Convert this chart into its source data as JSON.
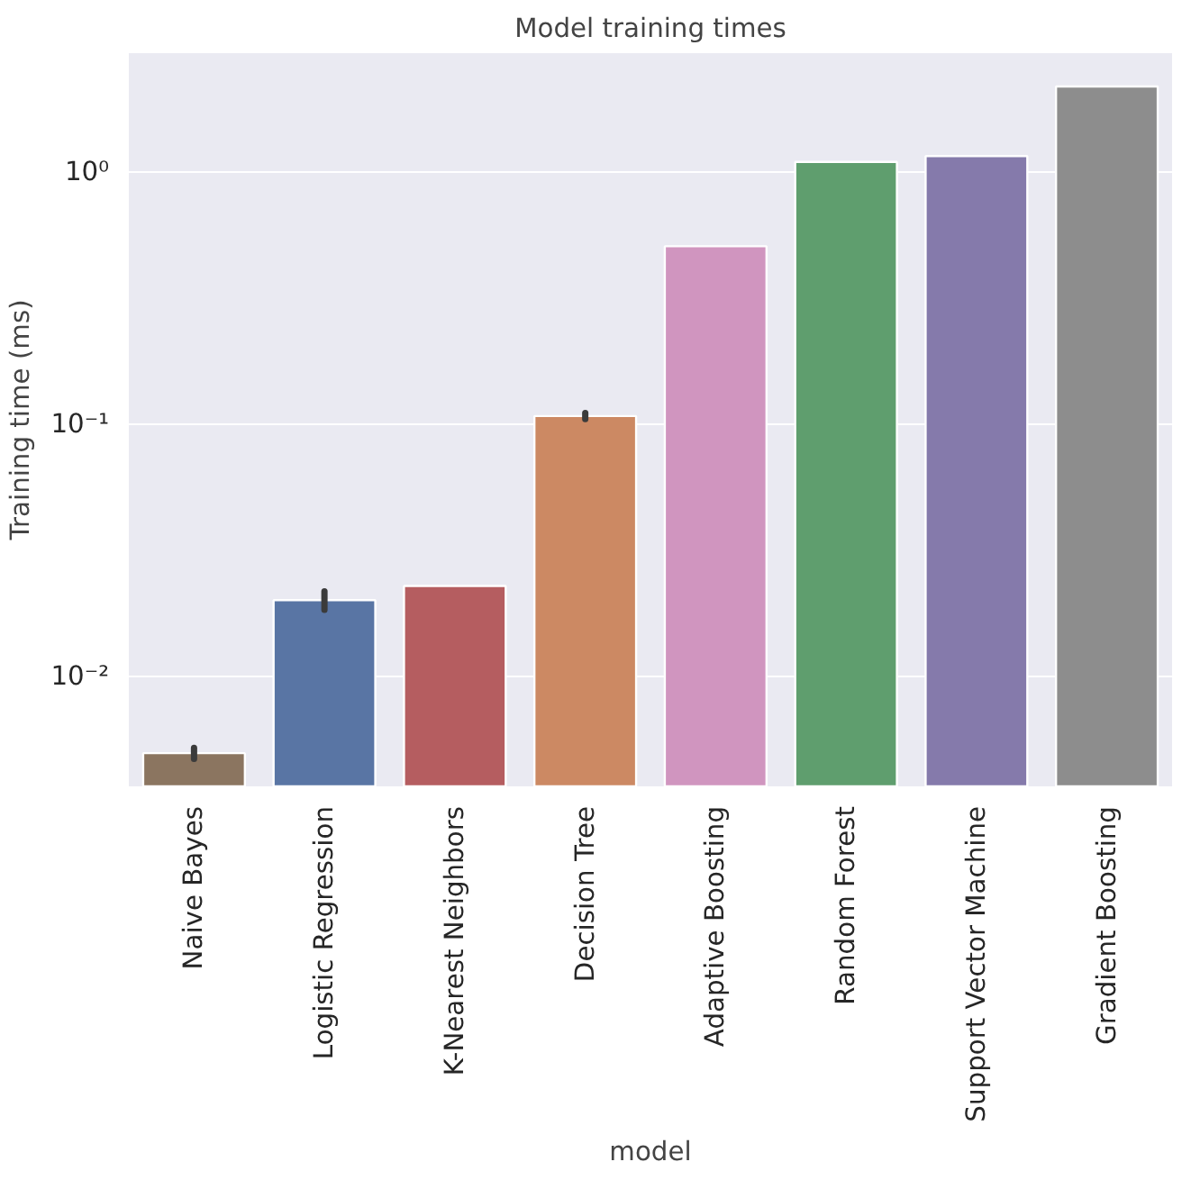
{
  "chart_data": {
    "type": "bar",
    "title": "Model training times",
    "xlabel": "model",
    "ylabel": "Training time (ms)",
    "categories": [
      "Naive Bayes",
      "Logistic Regression",
      "K-Nearest Neighbors",
      "Decision Tree",
      "Adaptive Boosting",
      "Random Forest",
      "Support Vector Machine",
      "Gradient Boosting"
    ],
    "values": [
      0.00497,
      0.0201,
      0.0229,
      0.108,
      0.509,
      1.1,
      1.16,
      2.19
    ],
    "errors": [
      0.00025,
      0.0017,
      null,
      0.003,
      null,
      null,
      null,
      null
    ],
    "colors": [
      "#8b7560",
      "#5975a4",
      "#b55d60",
      "#cc8963",
      "#d095bf",
      "#5f9e6e",
      "#857aab",
      "#8d8d8d"
    ],
    "log": true,
    "ylim": [
      0.00367,
      2.97
    ],
    "yticks": [
      {
        "value": 0.01,
        "label": "10⁻²"
      },
      {
        "value": 0.1,
        "label": "10⁻¹"
      },
      {
        "value": 1,
        "label": "10⁰"
      }
    ],
    "grid": "y"
  }
}
